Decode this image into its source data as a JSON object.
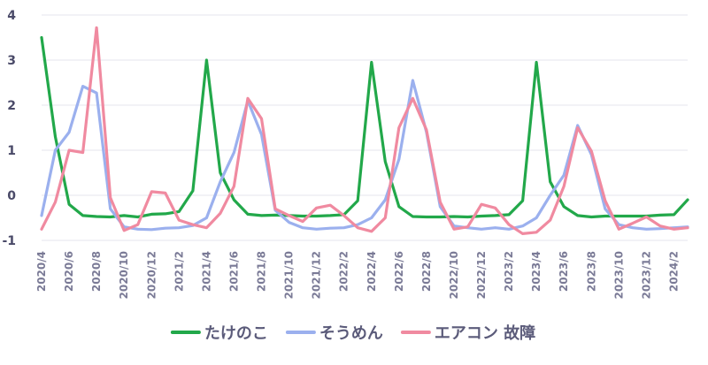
{
  "chart_data": {
    "type": "line",
    "title": "",
    "xlabel": "",
    "ylabel": "",
    "ylim": [
      -1,
      4
    ],
    "yticks": [
      -1,
      0,
      1,
      2,
      3,
      4
    ],
    "grid": true,
    "legend_position": "bottom",
    "x": [
      "2020/4",
      "2020/5",
      "2020/6",
      "2020/7",
      "2020/8",
      "2020/9",
      "2020/10",
      "2020/11",
      "2020/12",
      "2021/1",
      "2021/2",
      "2021/3",
      "2021/4",
      "2021/5",
      "2021/6",
      "2021/7",
      "2021/8",
      "2021/9",
      "2021/10",
      "2021/11",
      "2021/12",
      "2022/1",
      "2022/2",
      "2022/3",
      "2022/4",
      "2022/5",
      "2022/6",
      "2022/7",
      "2022/8",
      "2022/9",
      "2022/10",
      "2022/11",
      "2022/12",
      "2023/1",
      "2023/2",
      "2023/3",
      "2023/4",
      "2023/5",
      "2023/6",
      "2023/7",
      "2023/8",
      "2023/9",
      "2023/10",
      "2023/11",
      "2023/12",
      "2024/1",
      "2024/2",
      "2024/3"
    ],
    "x_tick_labels": [
      "2020/4",
      "2020/6",
      "2020/8",
      "2020/10",
      "2020/12",
      "2021/2",
      "2021/4",
      "2021/6",
      "2021/8",
      "2021/10",
      "2021/12",
      "2022/2",
      "2022/4",
      "2022/6",
      "2022/8",
      "2022/10",
      "2022/12",
      "2023/2",
      "2023/4",
      "2023/6",
      "2023/8",
      "2023/10",
      "2023/12",
      "2024/2"
    ],
    "series": [
      {
        "name": "たけのこ",
        "color": "#22a84a",
        "values": [
          3.5,
          1.3,
          -0.2,
          -0.45,
          -0.47,
          -0.48,
          -0.45,
          -0.48,
          -0.42,
          -0.41,
          -0.36,
          0.1,
          3.0,
          0.5,
          -0.1,
          -0.42,
          -0.45,
          -0.44,
          -0.45,
          -0.46,
          -0.46,
          -0.45,
          -0.43,
          -0.12,
          2.95,
          0.75,
          -0.25,
          -0.47,
          -0.48,
          -0.48,
          -0.47,
          -0.48,
          -0.46,
          -0.45,
          -0.43,
          -0.12,
          2.95,
          0.3,
          -0.25,
          -0.45,
          -0.48,
          -0.46,
          -0.46,
          -0.46,
          -0.46,
          -0.44,
          -0.43,
          -0.1
        ]
      },
      {
        "name": "そうめん",
        "color": "#9bb0ee",
        "values": [
          -0.45,
          1.0,
          1.4,
          2.42,
          2.27,
          -0.3,
          -0.7,
          -0.75,
          -0.76,
          -0.73,
          -0.72,
          -0.67,
          -0.5,
          0.3,
          0.95,
          2.1,
          1.35,
          -0.33,
          -0.6,
          -0.72,
          -0.75,
          -0.73,
          -0.72,
          -0.65,
          -0.5,
          -0.1,
          0.8,
          2.55,
          1.4,
          -0.25,
          -0.68,
          -0.72,
          -0.75,
          -0.72,
          -0.75,
          -0.68,
          -0.5,
          0.0,
          0.45,
          1.55,
          0.9,
          -0.3,
          -0.65,
          -0.72,
          -0.75,
          -0.74,
          -0.72,
          -0.7
        ]
      },
      {
        "name": "エアコン 故障",
        "color": "#f08aa0",
        "values": [
          -0.75,
          -0.15,
          1.0,
          0.95,
          3.72,
          -0.05,
          -0.78,
          -0.65,
          0.08,
          0.05,
          -0.55,
          -0.65,
          -0.72,
          -0.4,
          0.2,
          2.15,
          1.7,
          -0.3,
          -0.45,
          -0.58,
          -0.28,
          -0.22,
          -0.45,
          -0.72,
          -0.8,
          -0.5,
          1.5,
          2.15,
          1.45,
          -0.15,
          -0.75,
          -0.7,
          -0.2,
          -0.28,
          -0.65,
          -0.85,
          -0.82,
          -0.55,
          0.2,
          1.5,
          0.98,
          -0.12,
          -0.75,
          -0.62,
          -0.48,
          -0.68,
          -0.75,
          -0.72
        ]
      }
    ]
  }
}
